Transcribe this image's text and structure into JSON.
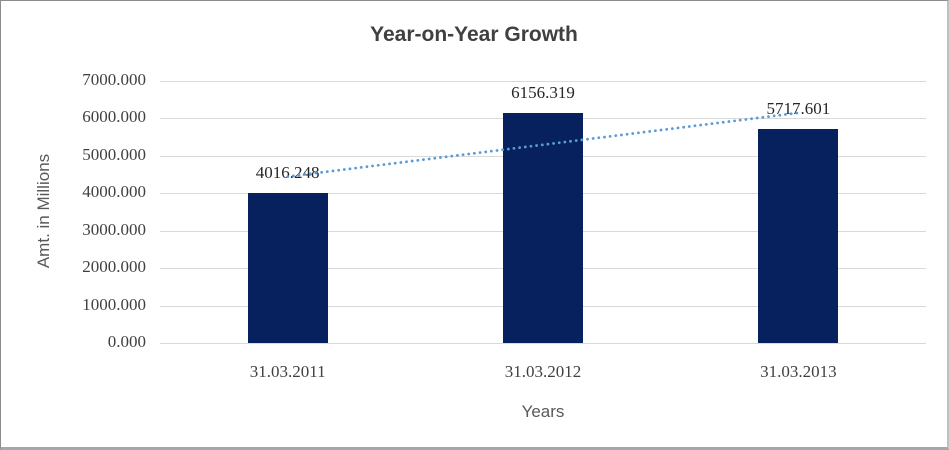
{
  "chart_data": {
    "type": "bar",
    "title": "Year-on-Year Growth",
    "xlabel": "Years",
    "ylabel": "Amt. in Millions",
    "categories": [
      "31.03.2011",
      "31.03.2012",
      "31.03.2013"
    ],
    "values": [
      4016.248,
      6156.319,
      5717.601
    ],
    "value_labels": [
      "4016.248",
      "6156.319",
      "5717.601"
    ],
    "ylim": [
      0,
      7000
    ],
    "ytick_step": 1000,
    "ytick_labels": [
      "0.000",
      "1000.000",
      "2000.000",
      "3000.000",
      "4000.000",
      "5000.000",
      "6000.000",
      "7000.000"
    ],
    "grid": true,
    "legend": "none",
    "trendline": {
      "type": "linear",
      "style": "dotted"
    },
    "colors": {
      "bar": "#06215E",
      "gridline": "#D9D9D9",
      "title_text": "#404040",
      "tick_text": "#404040",
      "data_label_text": "#262626",
      "axis_title_text": "#595959",
      "trendline": "#5B9BD5"
    }
  }
}
